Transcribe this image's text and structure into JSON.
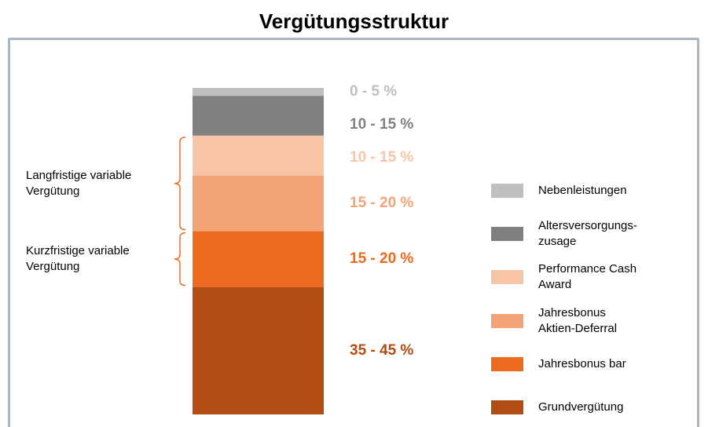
{
  "chart_data": {
    "type": "stacked-bar",
    "title": "Vergütungsstruktur",
    "series": [
      {
        "name": "Nebenleistungen",
        "color": "#bfbfbf",
        "values": [
          2.5
        ],
        "value_labels": [
          "0 - 5 %"
        ]
      },
      {
        "name": "Altersversorgungs-\nzusage",
        "color": "#808080",
        "values": [
          12.5
        ],
        "value_labels": [
          "10 - 15 %"
        ]
      },
      {
        "name": "Performance Cash\nAward",
        "color": "#f8c4a6",
        "values": [
          12.5
        ],
        "value_labels": [
          "10 - 15 %"
        ]
      },
      {
        "name": "Jahresbonus\nAktien-Deferral",
        "color": "#f3a477",
        "values": [
          17.5
        ],
        "value_labels": [
          "15 - 20 %"
        ]
      },
      {
        "name": "Jahresbonus bar",
        "color": "#ec6a1f",
        "values": [
          17.5
        ],
        "value_labels": [
          "15 - 20 %"
        ]
      },
      {
        "name": "Grundvergütung",
        "color": "#b14d12",
        "values": [
          40
        ],
        "value_labels": [
          "35 - 45 %"
        ]
      }
    ],
    "annotations": [
      "Langfristige variable\nVergütung",
      "Kurzfristige variable\nVergütung"
    ]
  }
}
